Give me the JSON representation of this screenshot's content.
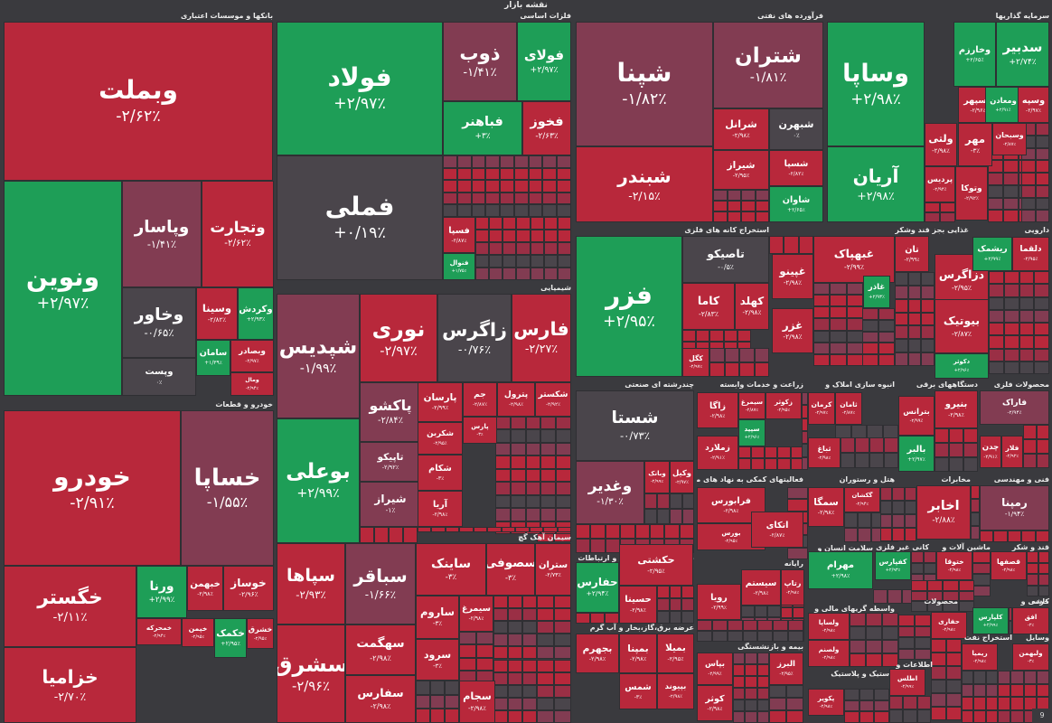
{
  "title": "نقشه بازار",
  "colors": {
    "up_strong": "#1e9e57",
    "down_strong": "#b8283b",
    "down_mid": "#9a2f45",
    "down_soft": "#823c52",
    "neutral": "#4a454b",
    "background": "#3a3a3e"
  },
  "corner_label": "9",
  "chart_data": {
    "type": "heatmap",
    "title": "نقشه بازار",
    "groups": [
      {
        "name": "بانکها و موسسات اعتباری",
        "tiles": [
          {
            "name": "وبملت",
            "change": "-۲/۶۲٪",
            "color": "#b8283b"
          },
          {
            "name": "ونوین",
            "change": "+۲/۹۷٪",
            "color": "#1e9e57"
          },
          {
            "name": "وپاسار",
            "change": "-۱/۴۱٪",
            "color": "#823c52"
          },
          {
            "name": "وتجارت",
            "change": "-۲/۶۲٪",
            "color": "#b8283b"
          },
          {
            "name": "وخاور",
            "change": "-۰/۶۵٪",
            "color": "#4a454b"
          },
          {
            "name": "وپست",
            "change": "۰٪",
            "color": "#4a454b"
          },
          {
            "name": "وسینا",
            "change": "-۲/۸۲٪",
            "color": "#b8283b"
          },
          {
            "name": "وکردش",
            "change": "+۲/۹۳٪",
            "color": "#1e9e57"
          },
          {
            "name": "سامان",
            "change": "+۱/۳۹٪",
            "color": "#1e9e57"
          },
          {
            "name": "وبصادر",
            "change": "-۲/۹۷٪",
            "color": "#b8283b"
          },
          {
            "name": "ومال",
            "change": "-۲/۹۴٪",
            "color": "#b8283b"
          }
        ]
      },
      {
        "name": "فلزات اساسی",
        "tiles": [
          {
            "name": "فولاد",
            "change": "+۲/۹۷٪",
            "color": "#1e9e57"
          },
          {
            "name": "فملی",
            "change": "+۰/۱۹٪",
            "color": "#4a454b"
          },
          {
            "name": "ذوب",
            "change": "-۱/۴۱٪",
            "color": "#823c52"
          },
          {
            "name": "فولای",
            "change": "+۲/۹۷٪",
            "color": "#1e9e57"
          },
          {
            "name": "فباهنر",
            "change": "+۳٪",
            "color": "#1e9e57"
          },
          {
            "name": "فخوز",
            "change": "-۲/۶۳٪",
            "color": "#b8283b"
          },
          {
            "name": "فسپا",
            "change": "-۲/۸۷٪",
            "color": "#b8283b"
          },
          {
            "name": "فنوال",
            "change": "+۱/۷۵٪",
            "color": "#1e9e57"
          }
        ]
      },
      {
        "name": "فرآورده های نفتی",
        "tiles": [
          {
            "name": "شپنا",
            "change": "-۱/۸۲٪",
            "color": "#823c52"
          },
          {
            "name": "شبندر",
            "change": "-۲/۱۵٪",
            "color": "#b8283b"
          },
          {
            "name": "شتران",
            "change": "-۱/۸۱٪",
            "color": "#823c52"
          },
          {
            "name": "شرانل",
            "change": "-۲/۹۸٪",
            "color": "#b8283b"
          },
          {
            "name": "شبهرن",
            "change": "۰٪",
            "color": "#4a454b"
          },
          {
            "name": "شیراز",
            "change": "-۲/۹۵٪",
            "color": "#b8283b"
          },
          {
            "name": "شسپا",
            "change": "-۲/۸۲٪",
            "color": "#b8283b"
          },
          {
            "name": "شاوان",
            "change": "+۲/۶۵٪",
            "color": "#1e9e57"
          }
        ]
      },
      {
        "name": "سرمایه گذاریها",
        "tiles": [
          {
            "name": "وساپا",
            "change": "+۲/۹۸٪",
            "color": "#1e9e57"
          },
          {
            "name": "آریان",
            "change": "+۲/۹۸٪",
            "color": "#1e9e57"
          },
          {
            "name": "وخارزم",
            "change": "+۲/۶۵٪",
            "color": "#1e9e57"
          },
          {
            "name": "سدبیر",
            "change": "+۲/۷۴٪",
            "color": "#1e9e57"
          },
          {
            "name": "وسپهر",
            "change": "-۲/۹۶٪",
            "color": "#b8283b"
          },
          {
            "name": "ومعادن",
            "change": "+۲/۹۱٪",
            "color": "#1e9e57"
          },
          {
            "name": "وسپه",
            "change": "-۲/۹۷٪",
            "color": "#b8283b"
          },
          {
            "name": "ولتی",
            "change": "-۲/۹۸٪",
            "color": "#b8283b"
          },
          {
            "name": "مهر",
            "change": "-۳٪",
            "color": "#b8283b"
          },
          {
            "name": "وسبحان",
            "change": "-۲/۸۷٪",
            "color": "#b8283b"
          },
          {
            "name": "پردیس",
            "change": "-۲/۹۴٪",
            "color": "#b8283b"
          },
          {
            "name": "وتوکا",
            "change": "-۲/۹۲٪",
            "color": "#b8283b"
          }
        ]
      },
      {
        "name": "خودرو و قطعات",
        "tiles": [
          {
            "name": "خودرو",
            "change": "-۲/۹۱٪",
            "color": "#b8283b"
          },
          {
            "name": "خساپا",
            "change": "-۱/۵۵٪",
            "color": "#823c52"
          },
          {
            "name": "خگستر",
            "change": "-۲/۱۱٪",
            "color": "#b8283b"
          },
          {
            "name": "خزامیا",
            "change": "-۲/۷۰٪",
            "color": "#b8283b"
          },
          {
            "name": "ورنا",
            "change": "+۲/۹۹٪",
            "color": "#1e9e57"
          },
          {
            "name": "خبهمن",
            "change": "-۲/۹۸٪",
            "color": "#b8283b"
          },
          {
            "name": "خوساز",
            "change": "-۲/۹۶٪",
            "color": "#b8283b"
          },
          {
            "name": "خمحرکه",
            "change": "-۲/۹۴٪",
            "color": "#b8283b"
          },
          {
            "name": "خپمن",
            "change": "-۲/۹۵٪",
            "color": "#b8283b"
          },
          {
            "name": "خکمک",
            "change": "+۲/۹۵٪",
            "color": "#1e9e57"
          },
          {
            "name": "خشرق",
            "change": "-۲/۹۵٪",
            "color": "#b8283b"
          }
        ]
      },
      {
        "name": "شیمیایی",
        "tiles": [
          {
            "name": "شپدیس",
            "change": "-۱/۹۹٪",
            "color": "#823c52"
          },
          {
            "name": "نوری",
            "change": "-۲/۹۷٪",
            "color": "#b8283b"
          },
          {
            "name": "زاگرس",
            "change": "-۰/۷۶٪",
            "color": "#4a454b"
          },
          {
            "name": "فارس",
            "change": "-۲/۲۷٪",
            "color": "#b8283b"
          },
          {
            "name": "بوعلی",
            "change": "+۲/۹۹٪",
            "color": "#1e9e57"
          },
          {
            "name": "پاکشو",
            "change": "-۲/۸۴٪",
            "color": "#823c52"
          },
          {
            "name": "تاپیکو",
            "change": "-۲/۹۲٪",
            "color": "#823c52"
          },
          {
            "name": "شیراز",
            "change": "-۱٪",
            "color": "#823c52"
          },
          {
            "name": "پارسان",
            "change": "-۲/۹۹٪",
            "color": "#b8283b"
          },
          {
            "name": "جم",
            "change": "-۲/۸۷٪",
            "color": "#b8283b"
          },
          {
            "name": "پترول",
            "change": "-۲/۹۸٪",
            "color": "#b8283b"
          },
          {
            "name": "شکستر",
            "change": "-۲/۹۲٪",
            "color": "#b8283b"
          },
          {
            "name": "شکربن",
            "change": "-۲/۹۵٪",
            "color": "#b8283b"
          },
          {
            "name": "پارس",
            "change": "-۳٪",
            "color": "#b8283b"
          },
          {
            "name": "شکام",
            "change": "-۳٪",
            "color": "#b8283b"
          },
          {
            "name": "آریا",
            "change": "-۲/۹۸٪",
            "color": "#b8283b"
          }
        ]
      },
      {
        "name": "استخراج کانه های فلزی",
        "tiles": [
          {
            "name": "فزر",
            "change": "+۲/۹۵٪",
            "color": "#1e9e57"
          },
          {
            "name": "تاصیکو",
            "change": "-۰/۵٪",
            "color": "#4a454b"
          },
          {
            "name": "کاما",
            "change": "-۲/۸۳٪",
            "color": "#b8283b"
          },
          {
            "name": "کهلد",
            "change": "-۲/۹۸٪",
            "color": "#b8283b"
          },
          {
            "name": "کگل",
            "change": "-۲/۹۷٪",
            "color": "#b8283b"
          }
        ]
      },
      {
        "name": "غذایی بجز قند وشکر",
        "tiles": [
          {
            "name": "غبهپاک",
            "change": "-۲/۹۹٪",
            "color": "#b8283b"
          },
          {
            "name": "تان",
            "change": "-۲/۹۹٪",
            "color": "#b8283b"
          },
          {
            "name": "غپینو",
            "change": "-۲/۹۸٪",
            "color": "#b8283b"
          },
          {
            "name": "غاذر",
            "change": "+۲/۹۳٪",
            "color": "#1e9e57"
          },
          {
            "name": "غزر",
            "change": "-۲/۹۸٪",
            "color": "#b8283b"
          }
        ]
      },
      {
        "name": "دارویی",
        "tiles": [
          {
            "name": "دزاگرس",
            "change": "-۲/۹۵٪",
            "color": "#b8283b"
          },
          {
            "name": "ریشمک",
            "change": "+۲/۹۹٪",
            "color": "#1e9e57"
          },
          {
            "name": "دلقما",
            "change": "-۲/۹۵٪",
            "color": "#b8283b"
          },
          {
            "name": "بیوتیک",
            "change": "-۲/۸۷٪",
            "color": "#b8283b"
          },
          {
            "name": "دکوثر",
            "change": "+۲/۹۶٪",
            "color": "#1e9e57"
          }
        ]
      },
      {
        "name": "چندرشته ای صنعتی",
        "tiles": [
          {
            "name": "شستا",
            "change": "-۰/۷۳٪",
            "color": "#4a454b"
          },
          {
            "name": "وغدیر",
            "change": "-۱/۳۰٪",
            "color": "#823c52"
          },
          {
            "name": "وبانک",
            "change": "-۲/۹۹٪",
            "color": "#b8283b"
          },
          {
            "name": "وکیل",
            "change": "-۲/۹۷٪",
            "color": "#b8283b"
          }
        ]
      },
      {
        "name": "زراعت و خدمات وابسته",
        "tiles": [
          {
            "name": "زاگا",
            "change": "-۲/۹۸٪",
            "color": "#b8283b"
          },
          {
            "name": "سیمرغ",
            "change": "-۲/۸۷٪",
            "color": "#b8283b"
          },
          {
            "name": "زکوثر",
            "change": "-۲/۹۵٪",
            "color": "#b8283b"
          },
          {
            "name": "سپید",
            "change": "+۲/۹۶٪",
            "color": "#1e9e57"
          },
          {
            "name": "زملارد",
            "change": "-۲/۹۱٪",
            "color": "#b8283b"
          }
        ]
      },
      {
        "name": "انبوه سازی املاک و",
        "tiles": [
          {
            "name": "کرمان",
            "change": "-۲/۹۷٪",
            "color": "#b8283b"
          },
          {
            "name": "ثامان",
            "change": "-۲/۸۷٪",
            "color": "#b8283b"
          },
          {
            "name": "ثباغ",
            "change": "-۲/۹۸٪",
            "color": "#b8283b"
          }
        ]
      },
      {
        "name": "دستگاههای برقی",
        "tiles": [
          {
            "name": "بنیرو",
            "change": "-۲/۹۸٪",
            "color": "#b8283b"
          },
          {
            "name": "بترانس",
            "change": "-۲/۹۹٪",
            "color": "#b8283b"
          },
          {
            "name": "بالبر",
            "change": "+۲/۹۷٪",
            "color": "#1e9e57"
          }
        ]
      },
      {
        "name": "محصولات فلزی",
        "tiles": [
          {
            "name": "فاراک",
            "change": "-۲/۹۴٪",
            "color": "#823c52"
          },
          {
            "name": "چدن",
            "change": "-۲/۹۱٪",
            "color": "#b8283b"
          },
          {
            "name": "فلار",
            "change": "-۲/۹۲٪",
            "color": "#b8283b"
          }
        ]
      },
      {
        "name": "سیمان آهک گچ",
        "tiles": [
          {
            "name": "سپاها",
            "change": "-۲/۹۳٪",
            "color": "#b8283b"
          },
          {
            "name": "سباقر",
            "change": "-۱/۶۶٪",
            "color": "#823c52"
          },
          {
            "name": "سشرق",
            "change": "-۲/۹۶٪",
            "color": "#b8283b"
          },
          {
            "name": "ساینک",
            "change": "-۳٪",
            "color": "#b8283b"
          },
          {
            "name": "سصوفی",
            "change": "-۳٪",
            "color": "#b8283b"
          },
          {
            "name": "ستران",
            "change": "-۲/۷۳٪",
            "color": "#b8283b"
          },
          {
            "name": "سهگمت",
            "change": "-۲/۹۸٪",
            "color": "#b8283b"
          },
          {
            "name": "سفارس",
            "change": "-۲/۹۸٪",
            "color": "#b8283b"
          },
          {
            "name": "ساروم",
            "change": "-۳٪",
            "color": "#b8283b"
          },
          {
            "name": "سرود",
            "change": "-۳٪",
            "color": "#b8283b"
          },
          {
            "name": "سیمرغ",
            "change": "-۲/۹۸٪",
            "color": "#b8283b"
          },
          {
            "name": "سجام",
            "change": "-۲/۹۸٪",
            "color": "#b8283b"
          }
        ]
      },
      {
        "name": "حمل و نقل انبارداری و ارتباطات",
        "tiles": [
          {
            "name": "حکشتی",
            "change": "-۲/۹۵٪",
            "color": "#b8283b"
          },
          {
            "name": "حفارس",
            "change": "+۲/۹۴٪",
            "color": "#1e9e57"
          },
          {
            "name": "حسینا",
            "change": "-۲/۹۸٪",
            "color": "#b8283b"
          }
        ]
      },
      {
        "name": "فعالیتهای کمکی به نهاد های مالی",
        "tiles": [
          {
            "name": "فرابورس",
            "change": "-۲/۹۸٪",
            "color": "#b8283b"
          },
          {
            "name": "بورس",
            "change": "-۲/۹۵٪",
            "color": "#b8283b"
          },
          {
            "name": "اتکای",
            "change": "-۲/۸۷٪",
            "color": "#b8283b"
          }
        ]
      },
      {
        "name": "هتل و رستوران",
        "tiles": [
          {
            "name": "سمگا",
            "change": "-۲/۹۸٪",
            "color": "#b8283b"
          },
          {
            "name": "گکشان",
            "change": "-۲/۹۴٪",
            "color": "#b8283b"
          }
        ]
      },
      {
        "name": "مخابرات",
        "tiles": [
          {
            "name": "اخابر",
            "change": "-۲/۸۸٪",
            "color": "#b8283b"
          }
        ]
      },
      {
        "name": "فنی و مهندسی",
        "tiles": [
          {
            "name": "رمپنا",
            "change": "-۱/۹۴٪",
            "color": "#823c52"
          }
        ]
      },
      {
        "name": "رایانه",
        "tiles": [
          {
            "name": "سیستم",
            "change": "-۲/۹۸٪",
            "color": "#b8283b"
          },
          {
            "name": "رتاپ",
            "change": "-۲/۹۸٪",
            "color": "#b8283b"
          },
          {
            "name": "رویا",
            "change": "-۲/۹۹٪",
            "color": "#b8283b"
          }
        ]
      },
      {
        "name": "سلامت انسان و",
        "tiles": [
          {
            "name": "مهرام",
            "change": "+۲/۹۸٪",
            "color": "#1e9e57"
          }
        ]
      },
      {
        "name": "عرضه برق،گاز،بخار و آب گرم",
        "tiles": [
          {
            "name": "بجهرم",
            "change": "-۲/۹۸٪",
            "color": "#b8283b"
          },
          {
            "name": "بمپنا",
            "change": "-۲/۹۸٪",
            "color": "#b8283b"
          },
          {
            "name": "بمیلا",
            "change": "-۲/۹۵٪",
            "color": "#b8283b"
          },
          {
            "name": "شمس",
            "change": "-۳٪",
            "color": "#b8283b"
          },
          {
            "name": "بپیوند",
            "change": "-۲/۹۸٪",
            "color": "#b8283b"
          }
        ]
      },
      {
        "name": "بیمه و بازنشستگی",
        "tiles": [
          {
            "name": "بپاس",
            "change": "-۲/۹۹٪",
            "color": "#b8283b"
          },
          {
            "name": "کوثر",
            "change": "-۲/۹۸٪",
            "color": "#b8283b"
          },
          {
            "name": "البرز",
            "change": "-۲/۹۵٪",
            "color": "#b8283b"
          }
        ]
      },
      {
        "name": "کانی غیر فلزی",
        "tiles": [
          {
            "name": "کفپارس",
            "change": "+۲/۹۳٪",
            "color": "#1e9e57"
          }
        ]
      },
      {
        "name": "ماشین آلات و",
        "tiles": [
          {
            "name": "ختوقا",
            "change": "-۲/۹۸٪",
            "color": "#b8283b"
          }
        ]
      },
      {
        "name": "قند و شکر",
        "tiles": [
          {
            "name": "قصفها",
            "change": "-۲/۹۸٪",
            "color": "#b8283b"
          }
        ]
      },
      {
        "name": "کاشی و",
        "tiles": [
          {
            "name": "کلپارس",
            "change": "+۲/۹۹٪",
            "color": "#1e9e57"
          }
        ]
      },
      {
        "name": "محصولات",
        "tiles": [
          {
            "name": "حفاری",
            "change": "-۲/۹۸٪",
            "color": "#b8283b"
          }
        ]
      },
      {
        "name": "واسطه گریهای مالی و",
        "tiles": [
          {
            "name": "ولساپا",
            "change": "-۲/۹۸٪",
            "color": "#b8283b"
          },
          {
            "name": "ولصنم",
            "change": "-۲/۹۸٪",
            "color": "#b8283b"
          }
        ]
      },
      {
        "name": "لاستیک و پلاستیک",
        "tiles": [
          {
            "name": "پکویر",
            "change": "-۲/۹۸٪",
            "color": "#b8283b"
          }
        ]
      },
      {
        "name": "استخراج نفت",
        "tiles": [
          {
            "name": "ریمیا",
            "change": "-۲/۹۸٪",
            "color": "#b8283b"
          }
        ]
      },
      {
        "name": "اطلاعات و",
        "tiles": [
          {
            "name": "اطلس",
            "change": "-۲/۹۹٪",
            "color": "#b8283b"
          }
        ]
      },
      {
        "name": "وسایل",
        "tiles": [
          {
            "name": "ولبهمن",
            "change": "-۳٪",
            "color": "#b8283b"
          }
        ]
      },
      {
        "name": "خرده",
        "tiles": [
          {
            "name": "افق",
            "change": "-۲٪",
            "color": "#b8283b"
          }
        ]
      }
    ]
  }
}
